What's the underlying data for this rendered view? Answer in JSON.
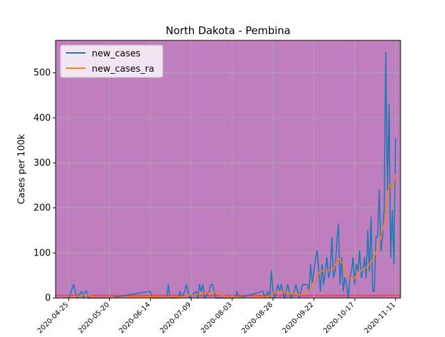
{
  "chart_data": {
    "type": "line",
    "title": "North Dakota - Pembina",
    "xlabel": "",
    "ylabel": "Cases per 100k",
    "x_range": [
      "2020-04-17",
      "2020-11-14"
    ],
    "ylim": [
      0,
      572
    ],
    "grid": true,
    "legend_position": "top-left",
    "background_color": "#bf7fbf",
    "reference_band": {
      "y0": 4,
      "y1": 7,
      "color": "#ff3030"
    },
    "x_ticks": [
      "2020-04-25",
      "2020-05-20",
      "2020-06-14",
      "2020-07-09",
      "2020-08-03",
      "2020-08-28",
      "2020-09-22",
      "2020-10-17",
      "2020-11-11"
    ],
    "y_ticks": [
      0,
      100,
      200,
      300,
      400,
      500
    ],
    "series": [
      {
        "name": "new_cases",
        "color": "#1f77b4",
        "points": [
          [
            "2020-04-25",
            0
          ],
          [
            "2020-04-28",
            30
          ],
          [
            "2020-04-30",
            0
          ],
          [
            "2020-05-03",
            15
          ],
          [
            "2020-05-04",
            0
          ],
          [
            "2020-05-05",
            15
          ],
          [
            "2020-05-06",
            15
          ],
          [
            "2020-05-07",
            0
          ],
          [
            "2020-05-20",
            0
          ],
          [
            "2020-06-14",
            15
          ],
          [
            "2020-06-15",
            0
          ],
          [
            "2020-06-24",
            0
          ],
          [
            "2020-06-25",
            30
          ],
          [
            "2020-06-26",
            0
          ],
          [
            "2020-07-01",
            0
          ],
          [
            "2020-07-02",
            15
          ],
          [
            "2020-07-03",
            0
          ],
          [
            "2020-07-05",
            15
          ],
          [
            "2020-07-06",
            30
          ],
          [
            "2020-07-07",
            15
          ],
          [
            "2020-07-08",
            0
          ],
          [
            "2020-07-12",
            15
          ],
          [
            "2020-07-13",
            0
          ],
          [
            "2020-07-14",
            30
          ],
          [
            "2020-07-15",
            15
          ],
          [
            "2020-07-16",
            30
          ],
          [
            "2020-07-17",
            0
          ],
          [
            "2020-07-20",
            15
          ],
          [
            "2020-07-21",
            30
          ],
          [
            "2020-07-22",
            30
          ],
          [
            "2020-07-23",
            15
          ],
          [
            "2020-07-24",
            0
          ],
          [
            "2020-08-05",
            0
          ],
          [
            "2020-08-06",
            15
          ],
          [
            "2020-08-07",
            0
          ],
          [
            "2020-08-22",
            15
          ],
          [
            "2020-08-23",
            0
          ],
          [
            "2020-08-25",
            15
          ],
          [
            "2020-08-26",
            0
          ],
          [
            "2020-08-27",
            60
          ],
          [
            "2020-08-28",
            15
          ],
          [
            "2020-08-29",
            0
          ],
          [
            "2020-08-30",
            15
          ],
          [
            "2020-08-31",
            30
          ],
          [
            "2020-09-01",
            15
          ],
          [
            "2020-09-02",
            30
          ],
          [
            "2020-09-03",
            15
          ],
          [
            "2020-09-04",
            0
          ],
          [
            "2020-09-05",
            15
          ],
          [
            "2020-09-06",
            30
          ],
          [
            "2020-09-07",
            15
          ],
          [
            "2020-09-08",
            0
          ],
          [
            "2020-09-10",
            15
          ],
          [
            "2020-09-11",
            30
          ],
          [
            "2020-09-12",
            15
          ],
          [
            "2020-09-13",
            0
          ],
          [
            "2020-09-15",
            30
          ],
          [
            "2020-09-18",
            30
          ],
          [
            "2020-09-19",
            15
          ],
          [
            "2020-09-20",
            75
          ],
          [
            "2020-09-21",
            30
          ],
          [
            "2020-09-22",
            60
          ],
          [
            "2020-09-23",
            90
          ],
          [
            "2020-09-24",
            105
          ],
          [
            "2020-09-25",
            60
          ],
          [
            "2020-09-26",
            15
          ],
          [
            "2020-09-27",
            75
          ],
          [
            "2020-09-28",
            30
          ],
          [
            "2020-09-29",
            60
          ],
          [
            "2020-09-30",
            90
          ],
          [
            "2020-10-01",
            45
          ],
          [
            "2020-10-02",
            60
          ],
          [
            "2020-10-03",
            135
          ],
          [
            "2020-10-04",
            45
          ],
          [
            "2020-10-05",
            60
          ],
          [
            "2020-10-06",
            120
          ],
          [
            "2020-10-07",
            165
          ],
          [
            "2020-10-08",
            30
          ],
          [
            "2020-10-09",
            90
          ],
          [
            "2020-10-10",
            15
          ],
          [
            "2020-10-11",
            45
          ],
          [
            "2020-10-12",
            30
          ],
          [
            "2020-10-13",
            0
          ],
          [
            "2020-10-14",
            45
          ],
          [
            "2020-10-15",
            60
          ],
          [
            "2020-10-16",
            90
          ],
          [
            "2020-10-17",
            30
          ],
          [
            "2020-10-18",
            75
          ],
          [
            "2020-10-19",
            60
          ],
          [
            "2020-10-20",
            105
          ],
          [
            "2020-10-21",
            45
          ],
          [
            "2020-10-22",
            60
          ],
          [
            "2020-10-23",
            90
          ],
          [
            "2020-10-24",
            45
          ],
          [
            "2020-10-25",
            150
          ],
          [
            "2020-10-26",
            60
          ],
          [
            "2020-10-27",
            180
          ],
          [
            "2020-10-28",
            15
          ],
          [
            "2020-10-29",
            15
          ],
          [
            "2020-10-30",
            135
          ],
          [
            "2020-10-31",
            135
          ],
          [
            "2020-11-01",
            240
          ],
          [
            "2020-11-02",
            105
          ],
          [
            "2020-11-03",
            135
          ],
          [
            "2020-11-04",
            195
          ],
          [
            "2020-11-05",
            545
          ],
          [
            "2020-11-06",
            240
          ],
          [
            "2020-11-07",
            430
          ],
          [
            "2020-11-08",
            90
          ],
          [
            "2020-11-09",
            195
          ],
          [
            "2020-11-10",
            75
          ],
          [
            "2020-11-11",
            355
          ]
        ]
      },
      {
        "name": "new_cases_ra",
        "color": "#ff7f0e",
        "points": [
          [
            "2020-04-25",
            0
          ],
          [
            "2020-04-28",
            4
          ],
          [
            "2020-05-01",
            4
          ],
          [
            "2020-05-04",
            6
          ],
          [
            "2020-05-07",
            6
          ],
          [
            "2020-05-10",
            2
          ],
          [
            "2020-05-13",
            0
          ],
          [
            "2020-06-14",
            2
          ],
          [
            "2020-06-18",
            2
          ],
          [
            "2020-06-22",
            0
          ],
          [
            "2020-06-26",
            4
          ],
          [
            "2020-07-01",
            2
          ],
          [
            "2020-07-05",
            4
          ],
          [
            "2020-07-08",
            7
          ],
          [
            "2020-07-11",
            6
          ],
          [
            "2020-07-14",
            9
          ],
          [
            "2020-07-17",
            11
          ],
          [
            "2020-07-20",
            12
          ],
          [
            "2020-07-24",
            13
          ],
          [
            "2020-07-28",
            6
          ],
          [
            "2020-08-01",
            0
          ],
          [
            "2020-08-05",
            2
          ],
          [
            "2020-08-09",
            0
          ],
          [
            "2020-08-22",
            2
          ],
          [
            "2020-08-26",
            4
          ],
          [
            "2020-08-29",
            12
          ],
          [
            "2020-09-01",
            15
          ],
          [
            "2020-09-04",
            13
          ],
          [
            "2020-09-07",
            10
          ],
          [
            "2020-09-10",
            10
          ],
          [
            "2020-09-13",
            6
          ],
          [
            "2020-09-16",
            9
          ],
          [
            "2020-09-19",
            17
          ],
          [
            "2020-09-22",
            38
          ],
          [
            "2020-09-25",
            55
          ],
          [
            "2020-09-28",
            62
          ],
          [
            "2020-10-01",
            60
          ],
          [
            "2020-10-04",
            65
          ],
          [
            "2020-10-07",
            88
          ],
          [
            "2020-10-10",
            75
          ],
          [
            "2020-10-13",
            45
          ],
          [
            "2020-10-16",
            40
          ],
          [
            "2020-10-19",
            55
          ],
          [
            "2020-10-22",
            63
          ],
          [
            "2020-10-25",
            70
          ],
          [
            "2020-10-28",
            85
          ],
          [
            "2020-10-31",
            110
          ],
          [
            "2020-11-03",
            150
          ],
          [
            "2020-11-05",
            180
          ],
          [
            "2020-11-07",
            250
          ],
          [
            "2020-11-09",
            245
          ],
          [
            "2020-11-10",
            255
          ],
          [
            "2020-11-11",
            275
          ]
        ]
      }
    ]
  }
}
